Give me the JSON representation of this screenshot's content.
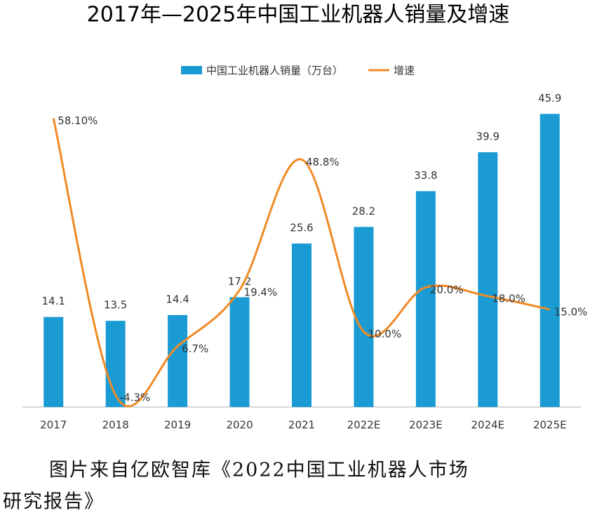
{
  "chart_data": {
    "type": "bar_line",
    "title": "2017年—2025年中国工业机器人销量及增速",
    "categories": [
      "2017",
      "2018",
      "2019",
      "2020",
      "2021",
      "2022E",
      "2023E",
      "2024E",
      "2025E"
    ],
    "series": [
      {
        "name": "中国工业机器人销量（万台）",
        "color": "#1a9bd4",
        "type": "bar",
        "values": [
          14.1,
          13.5,
          14.4,
          17.2,
          25.6,
          28.2,
          33.8,
          39.9,
          45.9
        ]
      },
      {
        "name": "增速",
        "color": "#f08a24",
        "type": "line",
        "axis": "y2",
        "values": [
          58.1,
          -4.3,
          6.7,
          19.4,
          48.8,
          10.0,
          20.0,
          18.0,
          15.0
        ],
        "value_labels": [
          "58.10%",
          "-4.3%",
          "6.7%",
          "19.4%",
          "48.8%",
          "10.0%",
          "20.0%",
          "18.0%",
          "15.0%"
        ]
      }
    ],
    "ylim": [
      0,
      50
    ],
    "y2lim": [
      -7,
      65
    ],
    "source": [
      "图片来自亿欧智库《2022中国工业机器人市场",
      "研究报告》"
    ]
  }
}
